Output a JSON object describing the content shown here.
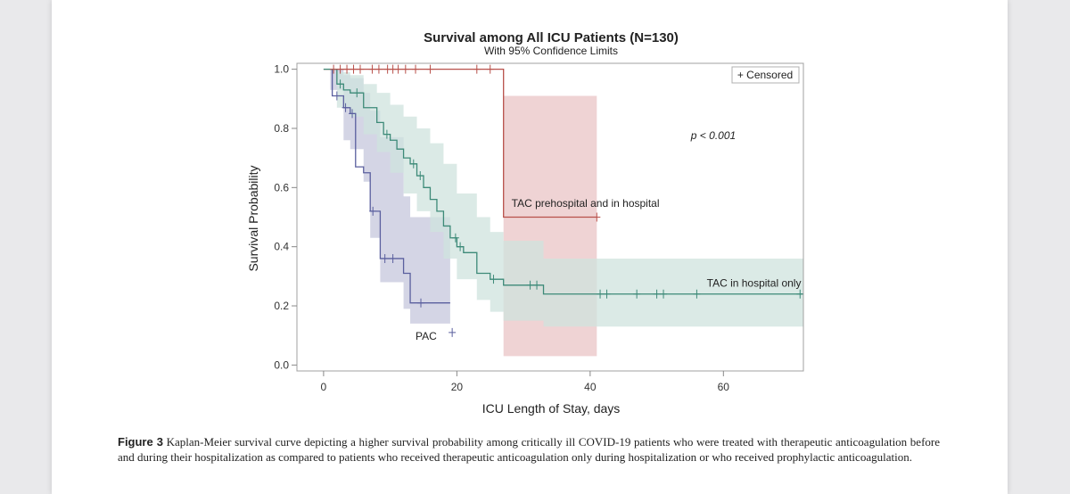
{
  "colors": {
    "pac": "#5a5f9e",
    "pac_band": "#c5c7dc",
    "tac_both": "#b8504a",
    "tac_both_band": "#e9c4c6",
    "tac_hosp": "#3d8a78",
    "tac_hosp_band": "#cfe3dd"
  },
  "chart_data": {
    "type": "line",
    "title": "Survival among All ICU Patients (N=130)",
    "subtitle": "With 95% Confidence Limits",
    "xlabel": "ICU Length of Stay, days",
    "ylabel": "Survival Probability",
    "xlim": [
      -4,
      72
    ],
    "ylim": [
      -0.02,
      1.02
    ],
    "xticks": [
      0,
      20,
      40,
      60
    ],
    "yticks": [
      0.0,
      0.2,
      0.4,
      0.6,
      0.8,
      1.0
    ],
    "ytick_labels": [
      "0.0",
      "0.2",
      "0.4",
      "0.6",
      "0.8",
      "1.0"
    ],
    "legend": {
      "label": "+ Censored",
      "position": "top-right"
    },
    "annotation": {
      "text": "p < 0.001"
    },
    "series": [
      {
        "name": "PAC",
        "color_key": "pac",
        "steps": [
          [
            1,
            1.0
          ],
          [
            1.3,
            0.91
          ],
          [
            2.6,
            0.91
          ],
          [
            3,
            0.87
          ],
          [
            4,
            0.85
          ],
          [
            4.8,
            0.67
          ],
          [
            6,
            0.65
          ],
          [
            7,
            0.52
          ],
          [
            8.5,
            0.36
          ],
          [
            12,
            0.31
          ],
          [
            13,
            0.21
          ],
          [
            19,
            0.21
          ]
        ],
        "end_x": 19,
        "censored": [
          [
            2,
            0.91
          ],
          [
            3.3,
            0.87
          ],
          [
            4.3,
            0.85
          ],
          [
            7.4,
            0.52
          ],
          [
            9.2,
            0.36
          ],
          [
            10.4,
            0.36
          ],
          [
            14.6,
            0.21
          ],
          [
            19.3,
            0.11
          ]
        ],
        "band": {
          "x": [
            1,
            3,
            4,
            6,
            7,
            8.5,
            12,
            13,
            19
          ],
          "lower": [
            0.93,
            0.76,
            0.73,
            0.62,
            0.43,
            0.28,
            0.19,
            0.14,
            0.07
          ],
          "upper": [
            1.0,
            0.98,
            0.97,
            0.92,
            0.86,
            0.77,
            0.57,
            0.5,
            0.43
          ]
        }
      },
      {
        "name": "TAC prehospital and in hospital",
        "color_key": "tac_both",
        "steps": [
          [
            0,
            1.0
          ],
          [
            27,
            1.0
          ],
          [
            27,
            0.5
          ],
          [
            41,
            0.5
          ]
        ],
        "end_x": 41,
        "censored": [
          [
            1.5,
            1.0
          ],
          [
            2.5,
            1.0
          ],
          [
            3.5,
            1.0
          ],
          [
            4.5,
            1.0
          ],
          [
            5.5,
            1.0
          ],
          [
            7.3,
            1.0
          ],
          [
            8.3,
            1.0
          ],
          [
            9.6,
            1.0
          ],
          [
            10.4,
            1.0
          ],
          [
            11.2,
            1.0
          ],
          [
            12.3,
            1.0
          ],
          [
            13.8,
            1.0
          ],
          [
            16,
            1.0
          ],
          [
            23,
            1.0
          ],
          [
            25,
            1.0
          ],
          [
            41,
            0.5
          ]
        ],
        "band": {
          "x": [
            27,
            41
          ],
          "lower": [
            0.03,
            0.03
          ],
          "upper": [
            0.91,
            0.91
          ]
        }
      },
      {
        "name": "TAC in hospital only",
        "color_key": "tac_hosp",
        "steps": [
          [
            0,
            1.0
          ],
          [
            2,
            0.95
          ],
          [
            3,
            0.93
          ],
          [
            4,
            0.92
          ],
          [
            6,
            0.87
          ],
          [
            8,
            0.82
          ],
          [
            9,
            0.78
          ],
          [
            10,
            0.76
          ],
          [
            11,
            0.73
          ],
          [
            12,
            0.7
          ],
          [
            13,
            0.68
          ],
          [
            14,
            0.64
          ],
          [
            15,
            0.6
          ],
          [
            16,
            0.56
          ],
          [
            17,
            0.52
          ],
          [
            18,
            0.47
          ],
          [
            19,
            0.43
          ],
          [
            20,
            0.4
          ],
          [
            21,
            0.38
          ],
          [
            23,
            0.31
          ],
          [
            25,
            0.29
          ],
          [
            27,
            0.27
          ],
          [
            33,
            0.24
          ],
          [
            72,
            0.24
          ]
        ],
        "end_x": 72,
        "censored": [
          [
            2.5,
            0.95
          ],
          [
            5,
            0.92
          ],
          [
            9.5,
            0.78
          ],
          [
            13.5,
            0.68
          ],
          [
            14.5,
            0.64
          ],
          [
            19.8,
            0.43
          ],
          [
            20.5,
            0.4
          ],
          [
            25.5,
            0.29
          ],
          [
            31,
            0.27
          ],
          [
            32,
            0.27
          ],
          [
            41.5,
            0.24
          ],
          [
            42.5,
            0.24
          ],
          [
            47,
            0.24
          ],
          [
            50,
            0.24
          ],
          [
            51,
            0.24
          ],
          [
            56,
            0.24
          ],
          [
            71.5,
            0.24
          ]
        ],
        "band": {
          "x": [
            2,
            4,
            6,
            8,
            10,
            12,
            14,
            16,
            18,
            20,
            23,
            25,
            27,
            33,
            72
          ],
          "lower": [
            0.87,
            0.84,
            0.78,
            0.72,
            0.65,
            0.58,
            0.52,
            0.45,
            0.36,
            0.29,
            0.22,
            0.18,
            0.15,
            0.13,
            0.13
          ],
          "upper": [
            0.99,
            0.98,
            0.95,
            0.92,
            0.88,
            0.84,
            0.8,
            0.75,
            0.68,
            0.58,
            0.5,
            0.45,
            0.42,
            0.36,
            0.36
          ]
        }
      }
    ],
    "series_labels": [
      {
        "text": "PAC",
        "x": 13.8,
        "y": 0.085
      },
      {
        "text": "TAC prehospital and in hospital",
        "x": 28.2,
        "y": 0.535
      },
      {
        "text": "TAC in hospital only",
        "x": 57.5,
        "y": 0.265
      }
    ]
  },
  "caption": {
    "label": "Figure 3",
    "text": "Kaplan-Meier survival curve depicting a higher survival probability among critically ill COVID-19 patients who were treated with therapeutic anticoagulation before and during their hospitalization as compared to patients who received therapeutic anticoagulation only during hospitalization or who received prophylactic anticoagulation."
  }
}
